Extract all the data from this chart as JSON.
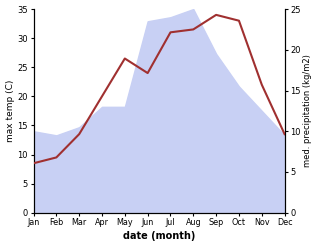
{
  "months": [
    "Jan",
    "Feb",
    "Mar",
    "Apr",
    "May",
    "Jun",
    "Jul",
    "Aug",
    "Sep",
    "Oct",
    "Nov",
    "Dec"
  ],
  "month_x": [
    1,
    2,
    3,
    4,
    5,
    6,
    7,
    8,
    9,
    10,
    11,
    12
  ],
  "temp": [
    8.5,
    9.5,
    13.5,
    20.0,
    26.5,
    24.0,
    31.0,
    31.5,
    34.0,
    33.0,
    22.0,
    13.5
  ],
  "precip": [
    10.0,
    9.5,
    10.5,
    13.0,
    13.0,
    23.5,
    24.0,
    25.0,
    19.5,
    15.5,
    12.5,
    9.5
  ],
  "temp_color": "#a03030",
  "precip_fill_color": "#c8d0f4",
  "bg_color": "#ffffff",
  "xlabel": "date (month)",
  "ylabel_left": "max temp (C)",
  "ylabel_right": "med. precipitation (kg/m2)",
  "ylim_left": [
    0,
    35
  ],
  "ylim_right": [
    0,
    25
  ],
  "yticks_left": [
    0,
    5,
    10,
    15,
    20,
    25,
    30,
    35
  ],
  "yticks_right": [
    0,
    5,
    10,
    15,
    20,
    25
  ],
  "line_width": 1.5
}
